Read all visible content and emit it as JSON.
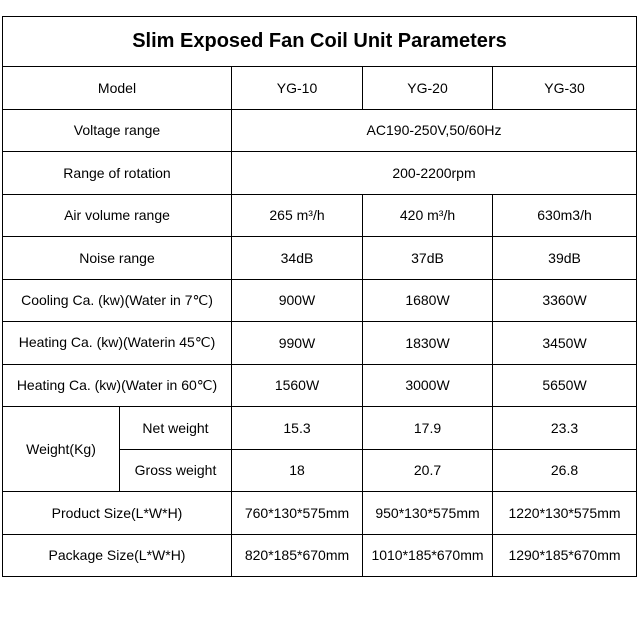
{
  "title": "Slim Exposed Fan Coil Unit Parameters",
  "header": {
    "label": "Model",
    "models": [
      "YG-10",
      "YG-20",
      "YG-30"
    ]
  },
  "voltage": {
    "label": "Voltage range",
    "value": "AC190-250V,50/60Hz"
  },
  "rotation": {
    "label": "Range of rotation",
    "value": "200-2200rpm"
  },
  "air_volume": {
    "label": "Air volume range",
    "values": [
      "265  m³/h",
      "420  m³/h",
      "630m3/h"
    ]
  },
  "noise": {
    "label": "Noise range",
    "values": [
      "34dB",
      "37dB",
      "39dB"
    ]
  },
  "cooling": {
    "label": "Cooling Ca. (kw)(Water in 7℃)",
    "values": [
      "900W",
      "1680W",
      "3360W"
    ]
  },
  "heating45": {
    "label": "Heating Ca. (kw)(Waterin 45℃)",
    "values": [
      "990W",
      "1830W",
      "3450W"
    ]
  },
  "heating60": {
    "label": "Heating Ca. (kw)(Water in 60℃)",
    "values": [
      "1560W",
      "3000W",
      "5650W"
    ]
  },
  "weight": {
    "label": "Weight(Kg)",
    "net": {
      "label": "Net weight",
      "values": [
        "15.3",
        "17.9",
        "23.3"
      ]
    },
    "gross": {
      "label": "Gross weight",
      "values": [
        "18",
        "20.7",
        "26.8"
      ]
    }
  },
  "product_size": {
    "label": "Product Size(L*W*H)",
    "values": [
      "760*130*575mm",
      "950*130*575mm",
      "1220*130*575mm"
    ]
  },
  "package_size": {
    "label": "Package Size(L*W*H)",
    "values": [
      "820*185*670mm",
      "1010*185*670mm",
      "1290*185*670mm"
    ]
  }
}
